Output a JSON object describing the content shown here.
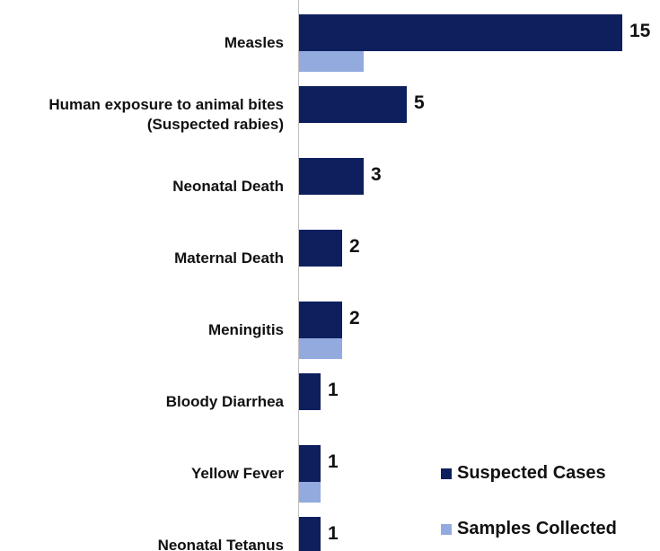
{
  "chart_data": {
    "type": "bar",
    "orientation": "horizontal",
    "categories": [
      "Measles",
      "Human exposure to animal bites\n(Suspected rabies)",
      "Neonatal Death",
      "Maternal Death",
      "Meningitis",
      "Bloody Diarrhea",
      "Yellow Fever",
      "Neonatal Tetanus"
    ],
    "series": [
      {
        "name": "Suspected Cases",
        "color": "#0e1f5e",
        "values": [
          15,
          5,
          3,
          2,
          2,
          1,
          1,
          1
        ]
      },
      {
        "name": "Samples Collected",
        "color": "#93aadf",
        "values": [
          3,
          0,
          0,
          0,
          2,
          0,
          1,
          0
        ]
      }
    ],
    "xlim": [
      0,
      15
    ]
  }
}
